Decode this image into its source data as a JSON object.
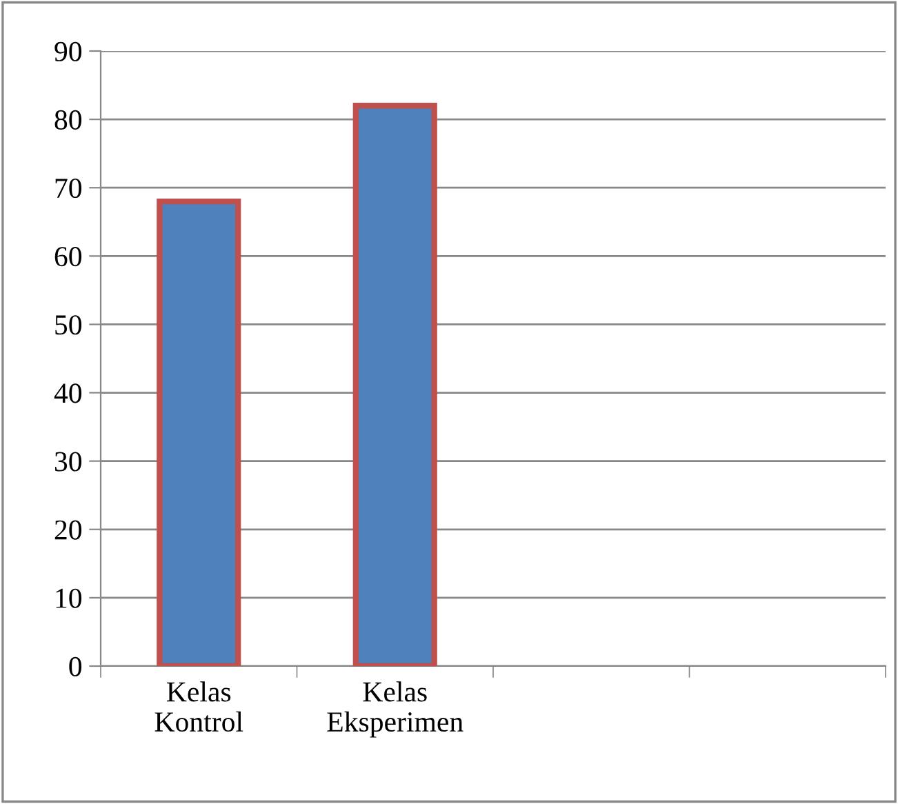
{
  "chart_data": {
    "type": "bar",
    "categories": [
      "Kelas\nKontrol",
      "Kelas\nEksperimen",
      null,
      null
    ],
    "values": [
      68,
      82,
      null,
      null
    ],
    "color": "#4f81bd",
    "ylim": [
      0,
      90
    ],
    "yticks": [
      0,
      10,
      20,
      30,
      40,
      50,
      60,
      70,
      80,
      90
    ],
    "grid": "y",
    "legend": false
  }
}
